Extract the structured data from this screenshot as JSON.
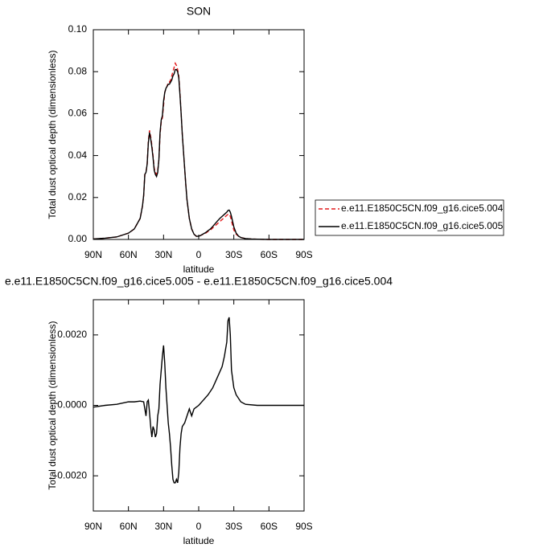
{
  "chart_data": [
    {
      "type": "line",
      "title": "SON",
      "xlabel": "latitude",
      "ylabel": "Total dust optical depth (dimensionless)",
      "x": [
        90,
        80,
        70,
        60,
        55,
        50,
        48,
        47,
        46,
        45,
        44,
        43,
        42,
        41,
        40,
        39,
        38,
        37,
        36,
        35,
        34,
        33,
        32,
        31,
        30,
        29,
        28,
        27,
        26,
        25,
        24,
        23,
        22,
        21,
        20,
        19,
        18,
        17,
        16,
        15,
        14,
        13,
        12,
        11,
        10,
        8,
        6,
        4,
        2,
        0,
        -2,
        -4,
        -6,
        -8,
        -10,
        -12,
        -14,
        -16,
        -18,
        -20,
        -22,
        -24,
        -25,
        -26,
        -27,
        -28,
        -29,
        -30,
        -32,
        -34,
        -36,
        -40,
        -45,
        -50,
        -60,
        -70,
        -80,
        -90
      ],
      "xlim": [
        90,
        -90
      ],
      "xticks": [
        {
          "value": 90,
          "label": "90N"
        },
        {
          "value": 60,
          "label": "60N"
        },
        {
          "value": 30,
          "label": "30N"
        },
        0,
        {
          "value": -30,
          "label": "30S"
        },
        {
          "value": -60,
          "label": "60S"
        },
        {
          "value": -90,
          "label": "90S"
        }
      ],
      "ylim": [
        0,
        0.1
      ],
      "yticks": [
        {
          "value": 0,
          "label": "0.00"
        },
        {
          "value": 0.02,
          "label": "0.02"
        },
        {
          "value": 0.04,
          "label": "0.04"
        },
        {
          "value": 0.06,
          "label": "0.06"
        },
        {
          "value": 0.08,
          "label": "0.08"
        },
        {
          "value": 0.1,
          "label": "0.10"
        }
      ],
      "legend": "right",
      "series": [
        {
          "name": "e.e11.E1850C5CN.f09_g16.cice5.004",
          "color": "#e41a1c",
          "dash": true,
          "values": [
            0.0002,
            0.0006,
            0.0012,
            0.003,
            0.005,
            0.01,
            0.016,
            0.021,
            0.031,
            0.032,
            0.036,
            0.047,
            0.052,
            0.049,
            0.045,
            0.04,
            0.034,
            0.032,
            0.031,
            0.033,
            0.038,
            0.05,
            0.056,
            0.058,
            0.064,
            0.07,
            0.072,
            0.073,
            0.075,
            0.075,
            0.076,
            0.078,
            0.08,
            0.082,
            0.084,
            0.083,
            0.081,
            0.078,
            0.07,
            0.06,
            0.05,
            0.042,
            0.034,
            0.026,
            0.019,
            0.01,
            0.005,
            0.0025,
            0.0015,
            0.0015,
            0.002,
            0.0025,
            0.003,
            0.0038,
            0.0045,
            0.0055,
            0.0065,
            0.0075,
            0.0085,
            0.0095,
            0.0105,
            0.0115,
            0.012,
            0.012,
            0.011,
            0.009,
            0.0065,
            0.0045,
            0.0025,
            0.0015,
            0.0009,
            0.0004,
            0.0002,
            0.0001,
            0,
            0,
            0,
            0
          ]
        },
        {
          "name": "e.e11.E1850C5CN.f09_g16.cice5.005",
          "color": "#000000",
          "dash": false,
          "values": [
            0.0002,
            0.0006,
            0.0012,
            0.003,
            0.005,
            0.01,
            0.016,
            0.021,
            0.031,
            0.032,
            0.036,
            0.046,
            0.051,
            0.048,
            0.044,
            0.039,
            0.033,
            0.031,
            0.03,
            0.032,
            0.038,
            0.051,
            0.057,
            0.059,
            0.066,
            0.07,
            0.072,
            0.073,
            0.074,
            0.074,
            0.075,
            0.076,
            0.078,
            0.079,
            0.081,
            0.081,
            0.08,
            0.077,
            0.069,
            0.06,
            0.05,
            0.042,
            0.034,
            0.026,
            0.019,
            0.01,
            0.005,
            0.0025,
            0.0015,
            0.0015,
            0.002,
            0.0027,
            0.0033,
            0.0042,
            0.005,
            0.0062,
            0.0075,
            0.0088,
            0.01,
            0.011,
            0.012,
            0.013,
            0.0138,
            0.014,
            0.013,
            0.011,
            0.0085,
            0.006,
            0.003,
            0.0016,
            0.0009,
            0.0004,
            0.0002,
            0.0001,
            0,
            0,
            0,
            0
          ]
        }
      ]
    },
    {
      "type": "line",
      "title": "e.e11.E1850C5CN.f09_g16.cice5.005 - e.e11.E1850C5CN.f09_g16.cice5.004",
      "xlabel": "latitude",
      "ylabel": "Total dust optical depth (dimensionless)",
      "x": [
        90,
        80,
        70,
        60,
        55,
        50,
        47,
        46,
        45,
        44,
        43,
        42,
        41,
        40,
        39,
        38,
        37,
        36,
        35,
        34,
        33,
        32,
        31,
        30,
        29,
        28,
        27,
        26,
        25,
        24,
        23,
        22,
        21,
        20,
        19,
        18,
        17,
        16,
        15,
        14,
        12,
        10,
        8,
        6,
        4,
        2,
        0,
        -4,
        -8,
        -12,
        -16,
        -20,
        -22,
        -24,
        -25,
        -26,
        -27,
        -28,
        -30,
        -32,
        -36,
        -40,
        -50,
        -60,
        -70,
        -80,
        -90
      ],
      "xlim": [
        90,
        -90
      ],
      "xticks": [
        {
          "value": 90,
          "label": "90N"
        },
        {
          "value": 60,
          "label": "60N"
        },
        {
          "value": 30,
          "label": "30N"
        },
        0,
        {
          "value": -30,
          "label": "30S"
        },
        {
          "value": -60,
          "label": "60S"
        },
        {
          "value": -90,
          "label": "90S"
        }
      ],
      "ylim": [
        -0.003,
        0.003
      ],
      "yticks": [
        {
          "value": -0.002,
          "label": "-0.0020"
        },
        {
          "value": 0,
          "label": "0.0000"
        },
        {
          "value": 0.002,
          "label": "0.0020"
        }
      ],
      "series": [
        {
          "name": "e.e11.E1850C5CN.f09_g16.cice5.005 - e.e11.E1850C5CN.f09_g16.cice5.004",
          "color": "#000000",
          "dash": false,
          "values": [
            -5e-05,
            0,
            3e-05,
            0.0001,
            0.0001,
            0.00012,
            0.0001,
            -0.0001,
            -0.0003,
            0.0001,
            0.00015,
            -0.0002,
            -0.0006,
            -0.0009,
            -0.0006,
            -0.0007,
            -0.0009,
            -0.0008,
            -0.0003,
            -0.0001,
            0.0006,
            0.001,
            0.0014,
            0.0017,
            0.0012,
            0.0005,
            0,
            -0.0005,
            -0.0008,
            -0.0012,
            -0.0017,
            -0.0021,
            -0.0022,
            -0.0022,
            -0.0021,
            -0.0022,
            -0.0019,
            -0.0012,
            -0.0008,
            -0.0006,
            -0.0005,
            -0.0003,
            -0.0001,
            -0.0003,
            -0.0001,
            -5e-05,
            0,
            0.00015,
            0.0003,
            0.0005,
            0.0008,
            0.0011,
            0.0014,
            0.0018,
            0.0024,
            0.0025,
            0.002,
            0.001,
            0.0005,
            0.0003,
            0.0001,
            3e-05,
            0,
            0,
            0,
            0,
            0
          ]
        }
      ]
    }
  ]
}
